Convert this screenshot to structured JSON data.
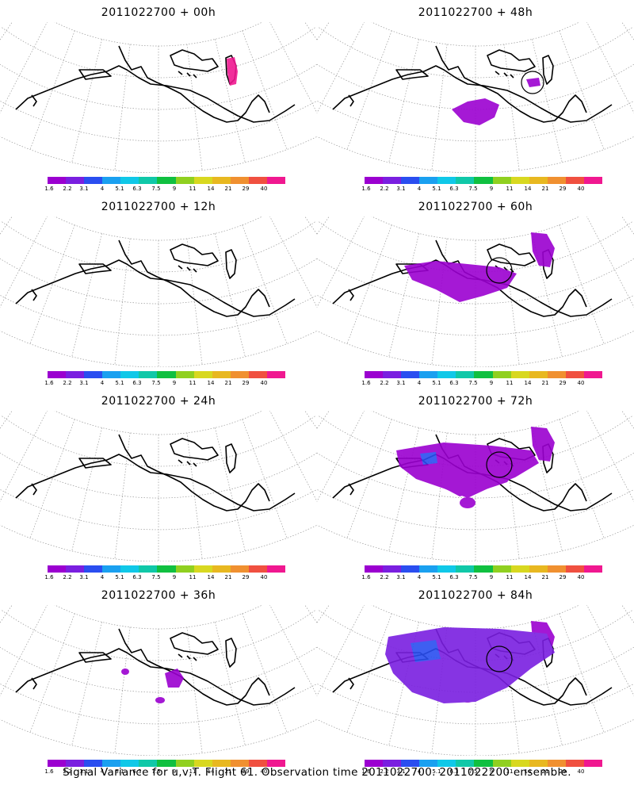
{
  "colorbar": {
    "labels": [
      "1.6",
      "2.2",
      "3.1",
      "4",
      "5.1",
      "6.3",
      "7.5",
      "9",
      "11",
      "14",
      "21",
      "29",
      "40"
    ],
    "colors": [
      "#9b00d0",
      "#7a1fe0",
      "#2a4ef0",
      "#1aa0f0",
      "#10c8e8",
      "#10c8a8",
      "#10c040",
      "#90d020",
      "#d8d820",
      "#e8b820",
      "#f09030",
      "#f05040",
      "#f01890"
    ]
  },
  "panels": [
    {
      "title": "2011022700 + 00h",
      "level": 0
    },
    {
      "title": "2011022700 + 48h",
      "level": 1
    },
    {
      "title": "2011022700 + 12h",
      "level": 0
    },
    {
      "title": "2011022700 + 60h",
      "level": 2
    },
    {
      "title": "2011022700 + 24h",
      "level": 0
    },
    {
      "title": "2011022700 + 72h",
      "level": 3
    },
    {
      "title": "2011022700 + 36h",
      "level": 1
    },
    {
      "title": "2011022700 + 84h",
      "level": 4
    }
  ],
  "footer": "Signal Variance for u,v,T. Flight 61. Observation time 2011022700. 2011022200 ensemble."
}
